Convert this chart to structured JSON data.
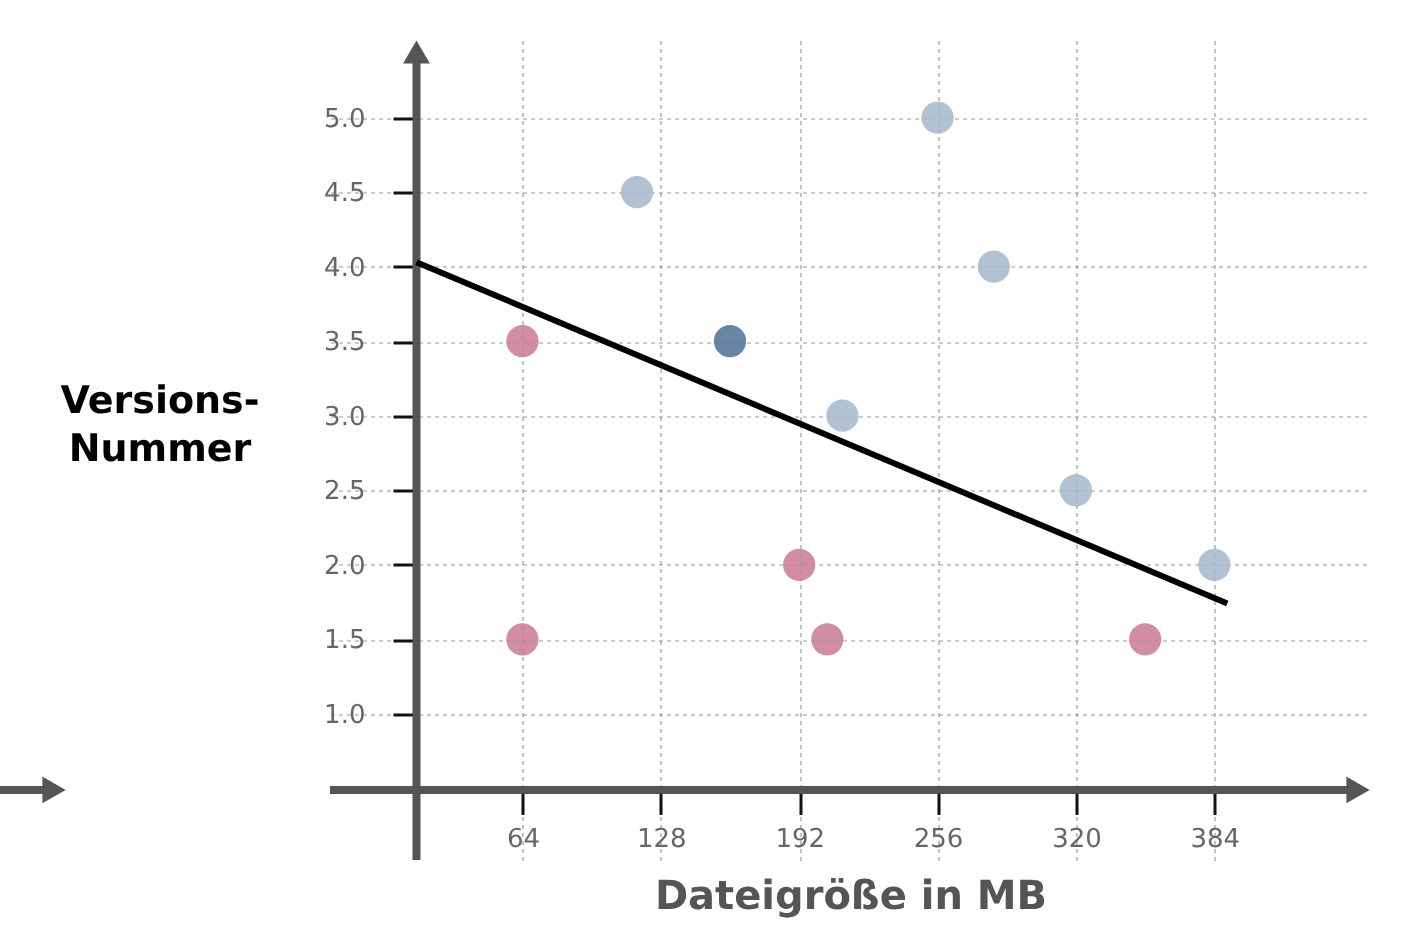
{
  "chart_data": {
    "type": "scatter",
    "xlabel": "Dateigröße in MB",
    "ylabel": "Versions-\nNummer",
    "xlim": [
      -25,
      456
    ],
    "ylim": [
      0.02,
      5.52
    ],
    "xticks": [
      64,
      128,
      192,
      256,
      320,
      384
    ],
    "yticks": [
      {
        "value": 1,
        "label": "1.0"
      },
      1.5,
      {
        "value": 2,
        "label": "2.0"
      },
      2.5,
      {
        "value": 3,
        "label": "3.0"
      },
      3.5,
      {
        "value": 4,
        "label": "4.0"
      },
      4.5,
      {
        "value": 5,
        "label": "5.0"
      }
    ],
    "grid": true,
    "marker": "circle",
    "series": [
      {
        "color": "#a3b8ca",
        "x": [
          117,
          212,
          256,
          282,
          320,
          384
        ],
        "values": [
          4.5,
          3.0,
          5.0,
          4.0,
          2.5,
          2.0
        ]
      },
      {
        "color": "#c97a93",
        "x": [
          64,
          64,
          192,
          205,
          352
        ],
        "values": [
          3.5,
          1.5,
          2.0,
          1.5,
          1.5
        ]
      },
      {
        "color": "#4d7094",
        "x": [
          160
        ],
        "values": [
          3.5
        ]
      },
      {
        "type": "line",
        "color": "#000000",
        "line_style": "solid",
        "marker": "none",
        "x": [
          15,
          390
        ],
        "values": [
          4.03,
          1.74
        ]
      }
    ]
  }
}
